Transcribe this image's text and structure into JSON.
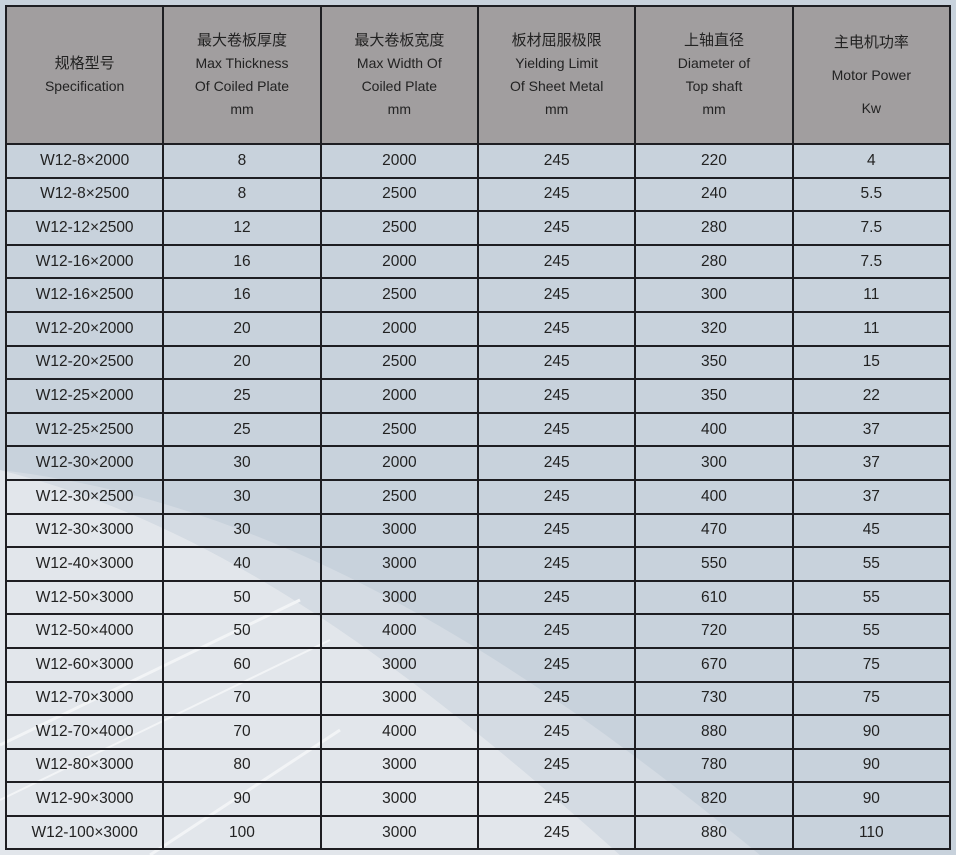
{
  "table": {
    "headers": [
      {
        "cn": "规格型号",
        "en": [
          "Specification"
        ]
      },
      {
        "cn": "最大卷板厚度",
        "en": [
          "Max Thickness",
          "Of Coiled Plate",
          "mm"
        ]
      },
      {
        "cn": "最大卷板宽度",
        "en": [
          "Max Width  Of",
          "Coiled Plate",
          "mm"
        ]
      },
      {
        "cn": "板材屈服极限",
        "en": [
          "Yielding Limit",
          "Of  Sheet Metal",
          "mm"
        ]
      },
      {
        "cn": "上轴直径",
        "en": [
          "Diameter of",
          "Top shaft",
          "mm"
        ]
      },
      {
        "cn": "主电机功率",
        "en": [
          "Motor Power",
          "Kw"
        ]
      }
    ],
    "rows": [
      [
        "W12-8×2000",
        "8",
        "2000",
        "245",
        "220",
        "4"
      ],
      [
        "W12-8×2500",
        "8",
        "2500",
        "245",
        "240",
        "5.5"
      ],
      [
        "W12-12×2500",
        "12",
        "2500",
        "245",
        "280",
        "7.5"
      ],
      [
        "W12-16×2000",
        "16",
        "2000",
        "245",
        "280",
        "7.5"
      ],
      [
        "W12-16×2500",
        "16",
        "2500",
        "245",
        "300",
        "11"
      ],
      [
        "W12-20×2000",
        "20",
        "2000",
        "245",
        "320",
        "11"
      ],
      [
        "W12-20×2500",
        "20",
        "2500",
        "245",
        "350",
        "15"
      ],
      [
        "W12-25×2000",
        "25",
        "2000",
        "245",
        "350",
        "22"
      ],
      [
        "W12-25×2500",
        "25",
        "2500",
        "245",
        "400",
        "37"
      ],
      [
        "W12-30×2000",
        "30",
        "2000",
        "245",
        "300",
        "37"
      ],
      [
        "W12-30×2500",
        "30",
        "2500",
        "245",
        "400",
        "37"
      ],
      [
        "W12-30×3000",
        "30",
        "3000",
        "245",
        "470",
        "45"
      ],
      [
        "W12-40×3000",
        "40",
        "3000",
        "245",
        "550",
        "55"
      ],
      [
        "W12-50×3000",
        "50",
        "3000",
        "245",
        "610",
        "55"
      ],
      [
        "W12-50×4000",
        "50",
        "4000",
        "245",
        "720",
        "55"
      ],
      [
        "W12-60×3000",
        "60",
        "3000",
        "245",
        "670",
        "75"
      ],
      [
        "W12-70×3000",
        "70",
        "3000",
        "245",
        "730",
        "75"
      ],
      [
        "W12-70×4000",
        "70",
        "4000",
        "245",
        "880",
        "90"
      ],
      [
        "W12-80×3000",
        "80",
        "3000",
        "245",
        "780",
        "90"
      ],
      [
        "W12-90×3000",
        "90",
        "3000",
        "245",
        "820",
        "90"
      ],
      [
        "W12-100×3000",
        "100",
        "3000",
        "245",
        "880",
        "110"
      ]
    ]
  },
  "colors": {
    "background": "#c8d2dc",
    "header": "#a19e9f",
    "border": "#1e1e22"
  }
}
